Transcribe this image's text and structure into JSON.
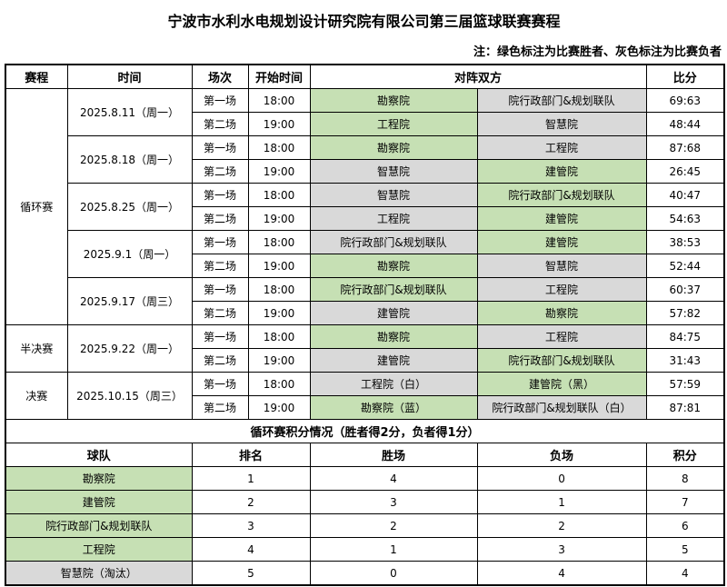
{
  "title": "宁波市水利水电规划设计研究院有限公司第三届篮球联赛赛程",
  "note": "注：绿色标注为比赛胜者、灰色标注为比赛负者",
  "colors": {
    "winner": "#C6E0B4",
    "loser": "#D9D9D9"
  },
  "headers": [
    "赛程",
    "时间",
    "场次",
    "开始时间",
    "对阵双方",
    "比分"
  ],
  "stages": [
    {
      "name": "循环赛",
      "dates": [
        {
          "date": "2025.8.11（周一）",
          "games": [
            {
              "no": "第一场",
              "time": "18:00",
              "t1": "勘察院",
              "r1": "winner",
              "t2": "院行政部门&规划联队",
              "r2": "loser",
              "score": "69:63"
            },
            {
              "no": "第二场",
              "time": "19:00",
              "t1": "工程院",
              "r1": "winner",
              "t2": "智慧院",
              "r2": "loser",
              "score": "48:44"
            }
          ]
        },
        {
          "date": "2025.8.18（周一）",
          "games": [
            {
              "no": "第一场",
              "time": "18:00",
              "t1": "勘察院",
              "r1": "winner",
              "t2": "工程院",
              "r2": "loser",
              "score": "87:68"
            },
            {
              "no": "第二场",
              "time": "19:00",
              "t1": "智慧院",
              "r1": "loser",
              "t2": "建管院",
              "r2": "winner",
              "score": "26:45"
            }
          ]
        },
        {
          "date": "2025.8.25（周一）",
          "games": [
            {
              "no": "第一场",
              "time": "18:00",
              "t1": "智慧院",
              "r1": "loser",
              "t2": "院行政部门&规划联队",
              "r2": "winner",
              "score": "40:47"
            },
            {
              "no": "第二场",
              "time": "19:00",
              "t1": "工程院",
              "r1": "loser",
              "t2": "建管院",
              "r2": "winner",
              "score": "54:63"
            }
          ]
        },
        {
          "date": "2025.9.1（周一）",
          "games": [
            {
              "no": "第一场",
              "time": "18:00",
              "t1": "院行政部门&规划联队",
              "r1": "loser",
              "t2": "建管院",
              "r2": "winner",
              "score": "38:53"
            },
            {
              "no": "第二场",
              "time": "19:00",
              "t1": "勘察院",
              "r1": "winner",
              "t2": "智慧院",
              "r2": "loser",
              "score": "52:44"
            }
          ]
        },
        {
          "date": "2025.9.17（周三）",
          "games": [
            {
              "no": "第一场",
              "time": "18:00",
              "t1": "院行政部门&规划联队",
              "r1": "winner",
              "t2": "工程院",
              "r2": "loser",
              "score": "60:37"
            },
            {
              "no": "第二场",
              "time": "19:00",
              "t1": "建管院",
              "r1": "loser",
              "t2": "勘察院",
              "r2": "winner",
              "score": "57:82"
            }
          ]
        }
      ]
    },
    {
      "name": "半决赛",
      "dates": [
        {
          "date": "2025.9.22（周一）",
          "games": [
            {
              "no": "第一场",
              "time": "18:00",
              "t1": "勘察院",
              "r1": "winner",
              "t2": "工程院",
              "r2": "loser",
              "score": "84:75"
            },
            {
              "no": "第二场",
              "time": "19:00",
              "t1": "建管院",
              "r1": "loser",
              "t2": "院行政部门&规划联队",
              "r2": "winner",
              "score": "31:43"
            }
          ]
        }
      ]
    },
    {
      "name": "决赛",
      "dates": [
        {
          "date": "2025.10.15（周三）",
          "games": [
            {
              "no": "第一场",
              "time": "18:00",
              "t1": "工程院（白）",
              "r1": "loser",
              "t2": "建管院（黑）",
              "r2": "winner",
              "score": "57:59"
            },
            {
              "no": "第二场",
              "time": "19:00",
              "t1": "勘察院（蓝）",
              "r1": "winner",
              "t2": "院行政部门&规划联队（白）",
              "r2": "loser",
              "score": "87:81"
            }
          ]
        }
      ]
    }
  ],
  "standings": {
    "title": "循环赛积分情况（胜者得2分，负者得1分）",
    "headers": [
      "球队",
      "排名",
      "胜场",
      "负场",
      "积分"
    ],
    "rows": [
      {
        "team": "勘察院",
        "status": "winner",
        "rank": "1",
        "wins": "4",
        "losses": "0",
        "points": "8"
      },
      {
        "team": "建管院",
        "status": "winner",
        "rank": "2",
        "wins": "3",
        "losses": "1",
        "points": "7"
      },
      {
        "team": "院行政部门&规划联队",
        "status": "winner",
        "rank": "3",
        "wins": "2",
        "losses": "2",
        "points": "6"
      },
      {
        "team": "工程院",
        "status": "winner",
        "rank": "4",
        "wins": "1",
        "losses": "3",
        "points": "5"
      },
      {
        "team": "智慧院（淘汰）",
        "status": "loser",
        "rank": "5",
        "wins": "0",
        "losses": "4",
        "points": "4"
      }
    ]
  }
}
